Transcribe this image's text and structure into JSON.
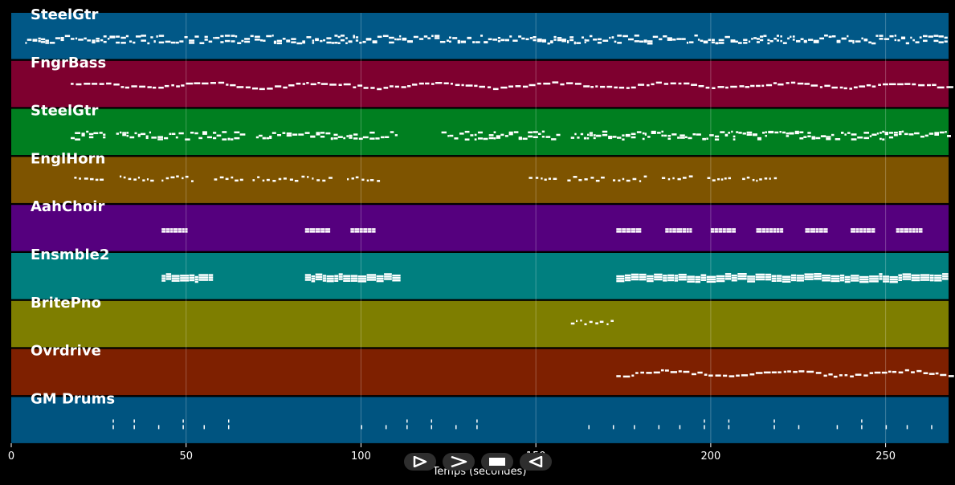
{
  "xlabel": "Temps (secondes)",
  "xticks": [
    0,
    50,
    100,
    150,
    200,
    250
  ],
  "xlim": [
    0,
    268
  ],
  "tracks": [
    {
      "name": "SteelGtr",
      "color": "#015887"
    },
    {
      "name": "FngrBass",
      "color": "#7e002f"
    },
    {
      "name": "SteelGtr",
      "color": "#007f20"
    },
    {
      "name": "EnglHorn",
      "color": "#7e5400"
    },
    {
      "name": "AahChoir",
      "color": "#55007e"
    },
    {
      "name": "Ensmble2",
      "color": "#007f7f"
    },
    {
      "name": "BritePno",
      "color": "#7e7e00"
    },
    {
      "name": "Ovrdrive",
      "color": "#7e2000"
    },
    {
      "name": "GM Drums",
      "color": "#005480"
    }
  ],
  "note_color": "#ffffff",
  "chart_data": {
    "type": "scatter",
    "title": "",
    "xlabel": "Temps (secondes)",
    "xlim": [
      0,
      268
    ],
    "grid": true,
    "series": [
      {
        "name": "SteelGtr",
        "segments": [
          [
            4,
            267,
            "dense"
          ]
        ]
      },
      {
        "name": "FngrBass",
        "segments": [
          [
            17,
            268,
            "melody"
          ]
        ]
      },
      {
        "name": "SteelGtr",
        "segments": [
          [
            17,
            27,
            "dense"
          ],
          [
            30,
            67,
            "dense"
          ],
          [
            70,
            110,
            "dense"
          ],
          [
            123,
            157,
            "dense"
          ],
          [
            160,
            268,
            "dense"
          ]
        ]
      },
      {
        "name": "EnglHorn",
        "segments": [
          [
            18,
            26,
            "sparse"
          ],
          [
            31,
            40,
            "sparse"
          ],
          [
            43,
            52,
            "sparse"
          ],
          [
            58,
            66,
            "sparse"
          ],
          [
            69,
            82,
            "sparse"
          ],
          [
            83,
            92,
            "sparse"
          ],
          [
            96,
            105,
            "sparse"
          ],
          [
            148,
            156,
            "sparse"
          ],
          [
            159,
            170,
            "sparse"
          ],
          [
            172,
            182,
            "sparse"
          ],
          [
            186,
            195,
            "sparse"
          ],
          [
            199,
            206,
            "sparse"
          ],
          [
            209,
            219,
            "sparse"
          ]
        ]
      },
      {
        "name": "AahChoir",
        "segments": [
          [
            43,
            50,
            "block"
          ],
          [
            84,
            90,
            "block"
          ],
          [
            97,
            104,
            "block"
          ],
          [
            173,
            180,
            "block"
          ],
          [
            187,
            194,
            "block"
          ],
          [
            200,
            207,
            "block"
          ],
          [
            213,
            220,
            "block"
          ],
          [
            227,
            233,
            "block"
          ],
          [
            240,
            247,
            "block"
          ],
          [
            253,
            260,
            "block"
          ]
        ]
      },
      {
        "name": "Ensmble2",
        "segments": [
          [
            43,
            57,
            "chord"
          ],
          [
            84,
            110,
            "chord"
          ],
          [
            173,
            268,
            "chord"
          ]
        ]
      },
      {
        "name": "BritePno",
        "segments": [
          [
            160,
            172,
            "sparse"
          ]
        ]
      },
      {
        "name": "Ovrdrive",
        "segments": [
          [
            173,
            268,
            "melody"
          ]
        ]
      },
      {
        "name": "GM Drums",
        "hits": [
          29,
          35,
          42,
          49,
          55,
          62,
          100,
          107,
          113,
          120,
          127,
          133,
          165,
          172,
          178,
          185,
          191,
          198,
          205,
          218,
          225,
          236,
          243,
          250,
          256,
          263
        ]
      }
    ]
  },
  "controls": [
    {
      "name": "play-button",
      "icon": "play-icon"
    },
    {
      "name": "forward-button",
      "icon": "chevron-right-icon"
    },
    {
      "name": "stop-button",
      "icon": "stop-icon"
    },
    {
      "name": "rewind-button",
      "icon": "rewind-icon"
    }
  ]
}
